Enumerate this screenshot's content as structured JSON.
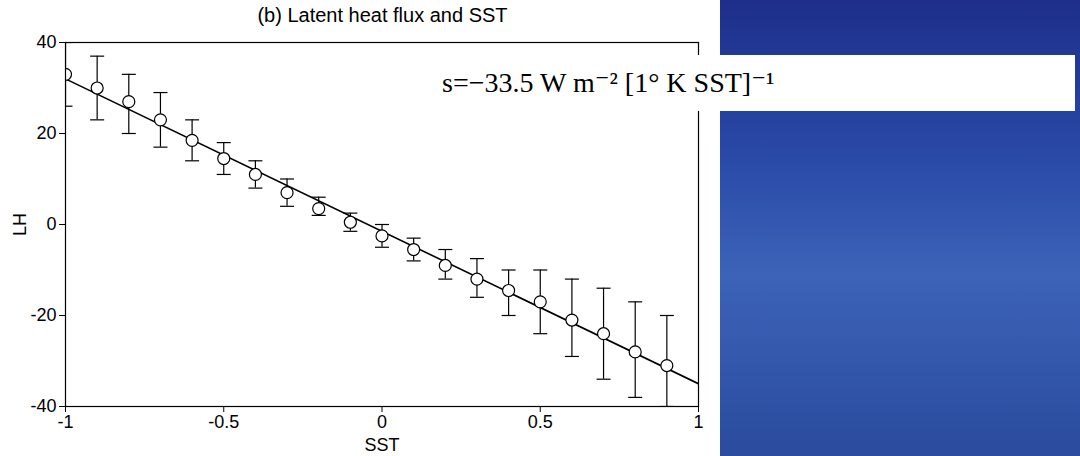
{
  "chart_data": {
    "type": "scatter",
    "title": "(b) Latent heat flux and SST",
    "x_label": "SST",
    "y_label": "LH",
    "x": [
      -1,
      -0.9,
      -0.8,
      -0.7,
      -0.6,
      -0.5,
      -0.4,
      -0.3,
      -0.2,
      -0.1,
      0,
      0.1,
      0.2,
      0.3,
      0.4,
      0.5,
      0.6,
      0.7,
      0.8,
      0.9
    ],
    "values": [
      33,
      30,
      27,
      23,
      18.5,
      14.5,
      11,
      7,
      3.5,
      0.5,
      -2.5,
      -5.5,
      -9,
      -12,
      -14.5,
      -17,
      -21,
      -24,
      -28,
      -31
    ],
    "error_low": [
      26,
      23,
      20,
      17,
      14,
      11,
      8,
      4,
      2,
      -1.5,
      -5,
      -8,
      -12,
      -16,
      -20,
      -24,
      -29,
      -34,
      -38,
      -40
    ],
    "error_high": [
      40,
      37,
      33,
      29,
      23,
      18,
      14,
      10,
      6,
      2.5,
      0,
      -3,
      -5.5,
      -7.5,
      -10,
      -10,
      -12,
      -14,
      -17,
      -20
    ],
    "marker": "circle",
    "fit_line": {
      "x": [
        -1,
        1
      ],
      "values": [
        32,
        -35
      ],
      "line_style": "solid"
    },
    "annotation": "s=−33.5 W m⁻² [1° K SST]⁻¹",
    "xlim": [
      -1,
      1
    ],
    "xticks": [
      -1,
      -0.5,
      0,
      0.5,
      1
    ],
    "ylim": [
      -40,
      40
    ],
    "yticks": [
      -40,
      -20,
      0,
      20,
      40
    ],
    "grid": false
  }
}
